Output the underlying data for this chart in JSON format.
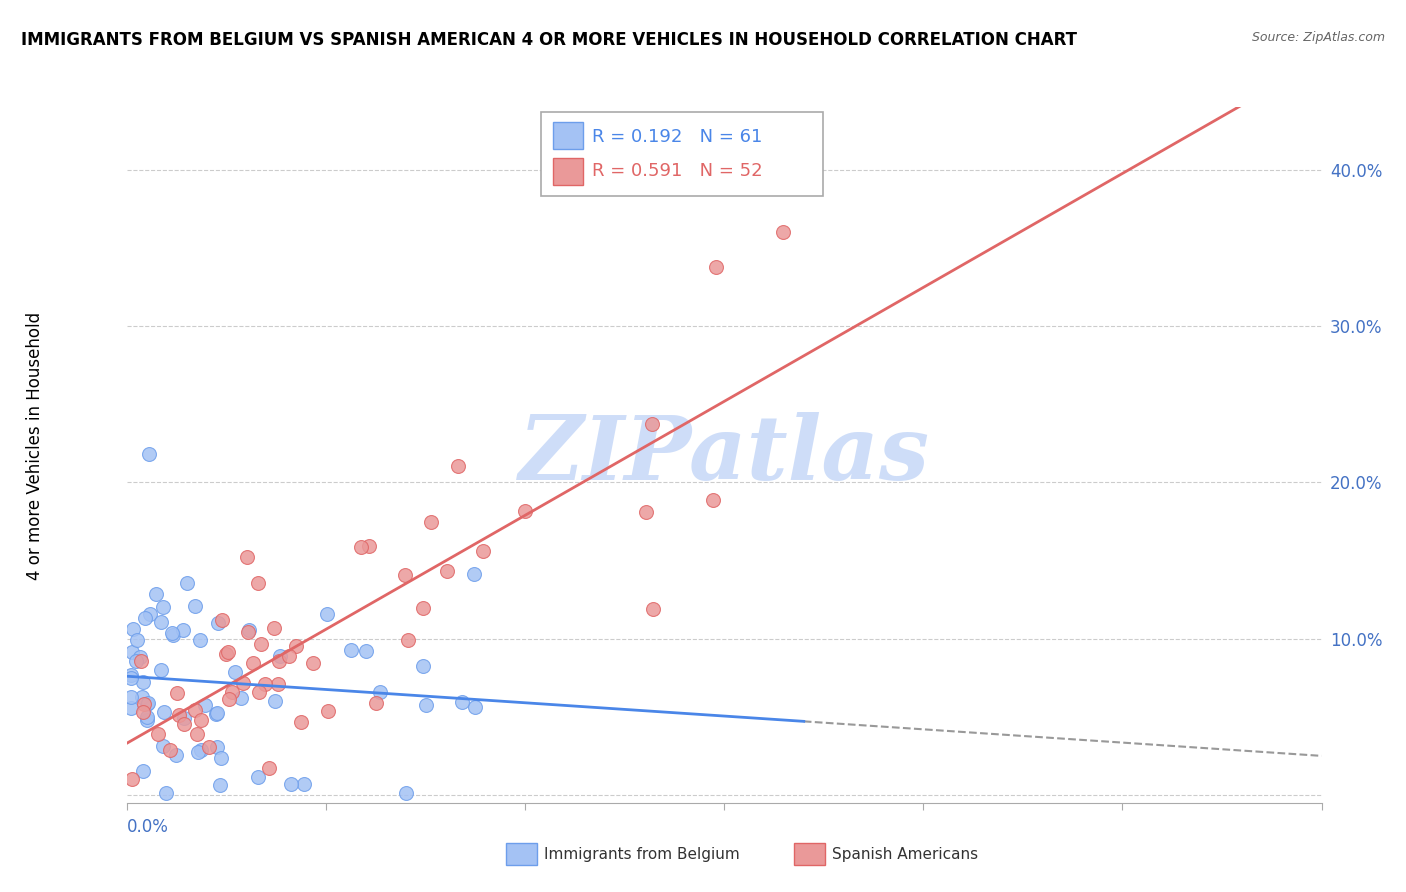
{
  "title": "IMMIGRANTS FROM BELGIUM VS SPANISH AMERICAN 4 OR MORE VEHICLES IN HOUSEHOLD CORRELATION CHART",
  "source": "Source: ZipAtlas.com",
  "ylabel": "4 or more Vehicles in Household",
  "x_lim": [
    0.0,
    0.3
  ],
  "y_lim": [
    -0.005,
    0.44
  ],
  "legend1_R": "0.192",
  "legend1_N": "61",
  "legend2_R": "0.591",
  "legend2_N": "52",
  "color_belgium": "#a4c2f4",
  "color_spanish": "#ea9999",
  "color_belgium_edge": "#6d9eeb",
  "color_spanish_edge": "#e06666",
  "color_belgium_line": "#4a86e8",
  "color_spanish_line": "#e06666",
  "color_gray_dash": "#999999",
  "watermark": "ZIPatlas",
  "watermark_color": "#c9daf8",
  "bg_color": "#ffffff",
  "grid_color": "#cccccc",
  "title_color": "#000000",
  "source_color": "#666666",
  "tick_color": "#4472c4",
  "ylabel_color": "#000000"
}
